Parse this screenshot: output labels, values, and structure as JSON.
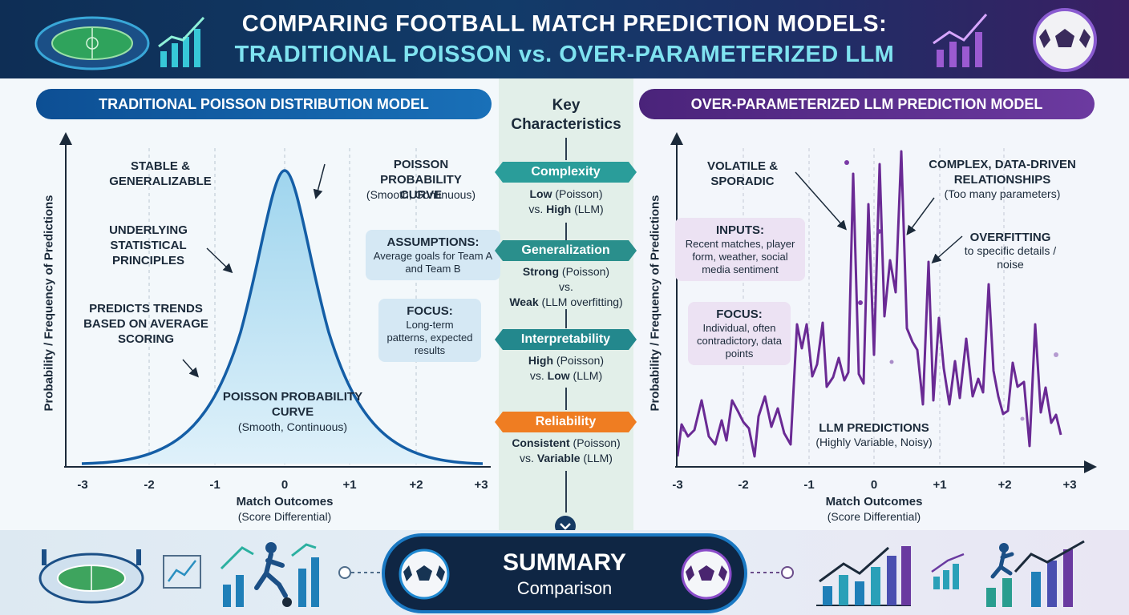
{
  "header": {
    "title_line1": "COMPARING FOOTBALL MATCH PREDICTION MODELS:",
    "title_line2": "TRADITIONAL POISSON vs. OVER-PARAMETERIZED LLM"
  },
  "left_panel": {
    "header": "TRADITIONAL POISSON DISTRIBUTION MODEL",
    "y_axis_label": "Probability / Frequency of Predictions",
    "x_axis_label": "Match Outcomes",
    "x_axis_sublabel": "(Score Differential)",
    "ticks": [
      "-3",
      "-2",
      "-1",
      "0",
      "+1",
      "+2",
      "+3"
    ],
    "ann_stable": "STABLE & GENERALIZABLE",
    "ann_principles": "UNDERLYING STATISTICAL PRINCIPLES",
    "ann_trends": "PREDICTS TRENDS BASED ON AVERAGE SCORING",
    "ann_curve_top_title": "POISSON PROBABILITY CURVE",
    "ann_curve_top_sub": "(Smooth, Continuous)",
    "ann_curve_mid_title": "POISSON PROBABILITY CURVE",
    "ann_curve_mid_sub": "(Smooth, Continuous)",
    "assumptions_title": "ASSUMPTIONS:",
    "assumptions_text": "Average goals for Team A and Team B",
    "focus_title": "FOCUS:",
    "focus_text": "Long-term patterns, expected results"
  },
  "right_panel": {
    "header": "OVER-PARAMETERIZED LLM PREDICTION MODEL",
    "y_axis_label": "Probability / Frequency of Predictions",
    "x_axis_label": "Match Outcomes",
    "x_axis_sublabel": "(Score Differential)",
    "ticks": [
      "-3",
      "-2",
      "-1",
      "0",
      "+1",
      "+2",
      "+3"
    ],
    "ann_volatile": "VOLATILE & SPORADIC",
    "ann_complex_title": "COMPLEX, DATA-DRIVEN RELATIONSHIPS",
    "ann_complex_sub": "(Too many parameters)",
    "ann_overfitting_title": "OVERFITTING",
    "ann_overfitting_sub": "to specific details / noise",
    "inputs_title": "INPUTS:",
    "inputs_text": "Recent matches, player form, weather, social media sentiment",
    "focus_title": "FOCUS:",
    "focus_text": "Individual, often contradictory, data points",
    "llm_title": "LLM PREDICTIONS",
    "llm_sub": "(Highly Variable, Noisy)"
  },
  "middle": {
    "title": "Key Characteristics",
    "items": [
      {
        "label": "Complexity",
        "line1_bold": "Low",
        "line1_rest": " (Poisson)",
        "line2_pre": "vs. ",
        "line2_bold": "High",
        "line2_rest": " (LLM)",
        "color": "#2a9d9a"
      },
      {
        "label": "Generalization",
        "line1_bold": "Strong",
        "line1_rest": " (Poisson)",
        "line2_pre": "vs.",
        "line2_bold": "",
        "line2_rest": "",
        "line3_bold": "Weak",
        "line3_rest": " (LLM overfitting)",
        "color": "#2a8f8c"
      },
      {
        "label": "Interpretability",
        "line1_bold": "High",
        "line1_rest": " (Poisson)",
        "line2_pre": "vs. ",
        "line2_bold": "Low",
        "line2_rest": " (LLM)",
        "color": "#23888d"
      },
      {
        "label": "Reliability",
        "line1_bold": "Consistent",
        "line1_rest": " (Poisson)",
        "line2_pre": "vs. ",
        "line2_bold": "Variable",
        "line2_rest": " (LLM)",
        "color": "#ef7d22"
      }
    ]
  },
  "footer": {
    "summary_title": "SUMMARY",
    "summary_sub": "Comparison"
  }
}
